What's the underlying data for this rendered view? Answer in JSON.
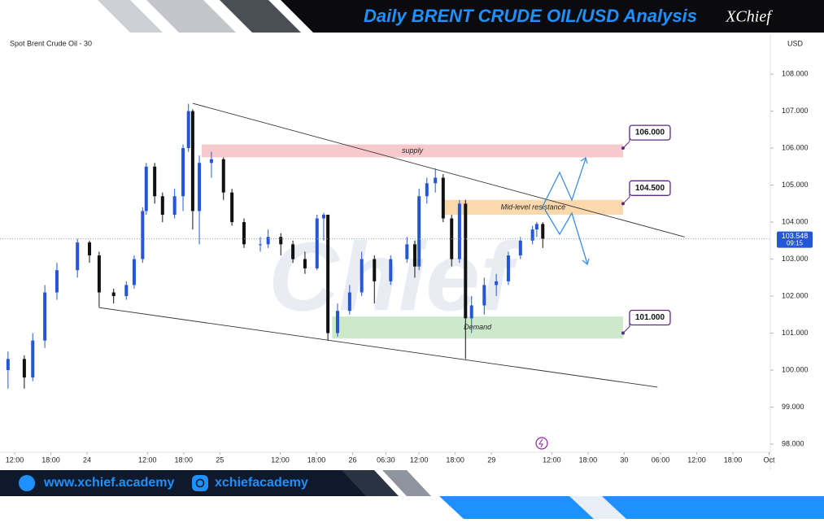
{
  "header": {
    "title": "Daily BRENT CRUDE OIL/USD Analysis",
    "logo": "XChief"
  },
  "footer": {
    "website": "www.xchief.academy",
    "social": "xchiefacademy"
  },
  "chart_data": {
    "type": "candlestick",
    "title": "Spot Brent Crude Oil - 30",
    "currency": "USD",
    "up_color": "#2457d6",
    "down_color": "#111111",
    "xlim": [
      -1.35,
      125.2
    ],
    "ylim": [
      97.78,
      109.08
    ],
    "xticks": [
      {
        "value": 0,
        "label": "12:00"
      },
      {
        "value": 6,
        "label": "18:00"
      },
      {
        "value": 12,
        "label": "24"
      },
      {
        "value": 22,
        "label": "12:00"
      },
      {
        "value": 28,
        "label": "18:00"
      },
      {
        "value": 34,
        "label": "25"
      },
      {
        "value": 44,
        "label": "12:00"
      },
      {
        "value": 50,
        "label": "18:00"
      },
      {
        "value": 56,
        "label": "26"
      },
      {
        "value": 61.5,
        "label": "06:30"
      },
      {
        "value": 67,
        "label": "12:00"
      },
      {
        "value": 73,
        "label": "18:00"
      },
      {
        "value": 79,
        "label": "29"
      },
      {
        "value": 89,
        "label": "12:00"
      },
      {
        "value": 95,
        "label": "18:00"
      },
      {
        "value": 101,
        "label": "30"
      },
      {
        "value": 107,
        "label": "06:00"
      },
      {
        "value": 113,
        "label": "12:00"
      },
      {
        "value": 119,
        "label": "18:00"
      },
      {
        "value": 125,
        "label": "Oct"
      }
    ],
    "yticks": [
      {
        "value": 98,
        "label": "98.000"
      },
      {
        "value": 99,
        "label": "99.000"
      },
      {
        "value": 100,
        "label": "100.000"
      },
      {
        "value": 101,
        "label": "101.000"
      },
      {
        "value": 102,
        "label": "102.000"
      },
      {
        "value": 103,
        "label": "103.000"
      },
      {
        "value": 104,
        "label": "104.000"
      },
      {
        "value": 105,
        "label": "105.000"
      },
      {
        "value": 106,
        "label": "106.000"
      },
      {
        "value": 107,
        "label": "107.000"
      },
      {
        "value": 108,
        "label": "108.000"
      }
    ],
    "x": [
      -1.1,
      1.6,
      3.0,
      5.0,
      7.0,
      10.4,
      12.4,
      14.0,
      16.4,
      18.5,
      19.8,
      21.2,
      21.8,
      23.2,
      24.5,
      26.5,
      27.9,
      28.8,
      29.5,
      30.6,
      32.6,
      34.6,
      36.0,
      38.0,
      40.7,
      42.0,
      44.1,
      46.1,
      48.1,
      50.1,
      51.2,
      51.9,
      53.5,
      55.5,
      57.5,
      59.6,
      62.3,
      65.0,
      66.3,
      67.0,
      68.3,
      69.7,
      71.0,
      72.4,
      73.7,
      74.7,
      75.7,
      77.8,
      79.8,
      81.8,
      83.8,
      85.8,
      86.5,
      87.5
    ],
    "open": [
      100.0,
      100.3,
      99.8,
      100.8,
      102.1,
      102.7,
      103.45,
      103.1,
      102.1,
      102.0,
      102.3,
      103.0,
      104.3,
      105.5,
      104.7,
      104.2,
      104.7,
      106.0,
      107.0,
      104.3,
      105.6,
      105.7,
      104.8,
      104.0,
      103.4,
      103.4,
      103.6,
      103.4,
      103.0,
      102.75,
      104.1,
      104.2,
      101.0,
      101.6,
      102.1,
      103.0,
      102.4,
      103.0,
      103.4,
      102.8,
      104.7,
      105.05,
      105.2,
      104.1,
      103.0,
      104.5,
      101.4,
      101.75,
      102.3,
      102.4,
      103.1,
      103.5,
      103.8,
      103.95
    ],
    "high": [
      100.5,
      100.4,
      101.0,
      102.3,
      102.9,
      103.55,
      103.5,
      103.2,
      102.2,
      102.4,
      103.1,
      104.4,
      105.6,
      105.6,
      104.8,
      104.9,
      106.1,
      107.2,
      107.05,
      105.8,
      105.9,
      105.75,
      104.9,
      104.1,
      103.6,
      103.8,
      103.7,
      103.5,
      103.2,
      104.2,
      104.25,
      104.2,
      101.8,
      102.3,
      103.2,
      103.1,
      103.1,
      103.6,
      103.5,
      104.9,
      105.2,
      105.45,
      105.3,
      104.2,
      104.6,
      104.6,
      102.0,
      102.5,
      102.6,
      103.2,
      103.6,
      103.9,
      104.0,
      104.0
    ],
    "low": [
      99.5,
      99.5,
      99.7,
      100.6,
      101.9,
      102.5,
      102.9,
      101.7,
      101.8,
      101.9,
      102.2,
      102.9,
      104.2,
      104.5,
      104.0,
      104.1,
      104.3,
      105.9,
      103.8,
      103.4,
      105.2,
      104.6,
      103.9,
      103.3,
      103.2,
      103.3,
      103.1,
      102.9,
      102.6,
      102.7,
      103.5,
      100.8,
      100.9,
      101.5,
      102.0,
      101.8,
      102.3,
      102.9,
      102.5,
      102.7,
      104.5,
      104.8,
      104.0,
      102.8,
      102.9,
      100.3,
      101.0,
      101.5,
      102.0,
      102.3,
      103.0,
      103.4,
      103.6,
      103.3
    ],
    "close": [
      100.3,
      99.8,
      100.8,
      102.1,
      102.7,
      103.45,
      103.1,
      102.1,
      102.0,
      102.3,
      103.0,
      104.3,
      105.5,
      104.7,
      104.2,
      104.7,
      106.0,
      107.0,
      104.3,
      105.6,
      105.7,
      104.8,
      104.0,
      103.4,
      103.4,
      103.6,
      103.4,
      103.0,
      102.75,
      104.1,
      104.2,
      101.0,
      101.6,
      102.1,
      103.0,
      102.4,
      103.0,
      103.4,
      102.8,
      104.7,
      105.05,
      105.2,
      104.1,
      103.0,
      104.5,
      101.4,
      101.75,
      102.3,
      102.4,
      103.1,
      103.5,
      103.8,
      103.95,
      103.548
    ],
    "last_price": {
      "value": 103.548,
      "label": "103.548"
    },
    "countdown": "09:15",
    "zones": [
      {
        "name": "supply",
        "low": 105.75,
        "high": 106.1,
        "x0": 31.0,
        "x1": 100.8,
        "color": "#f8c9cc"
      },
      {
        "name": "Mid-level resistance",
        "low": 104.2,
        "high": 104.6,
        "x0": 71.0,
        "x1": 100.8,
        "color": "#fbd9ad"
      },
      {
        "name": "Demand",
        "low": 100.85,
        "high": 101.45,
        "x0": 52.6,
        "x1": 100.8,
        "color": "#cde9cc"
      }
    ],
    "trendlines": [
      {
        "x0": 29.5,
        "y0": 107.21,
        "x1": 111.0,
        "y1": 103.6
      },
      {
        "x0": 14.0,
        "y0": 101.69,
        "x1": 106.5,
        "y1": 99.54
      }
    ],
    "levels": [
      {
        "value": 106,
        "label": "106.000"
      },
      {
        "value": 104.5,
        "label": "104.500"
      },
      {
        "value": 101,
        "label": "101.000"
      }
    ]
  }
}
